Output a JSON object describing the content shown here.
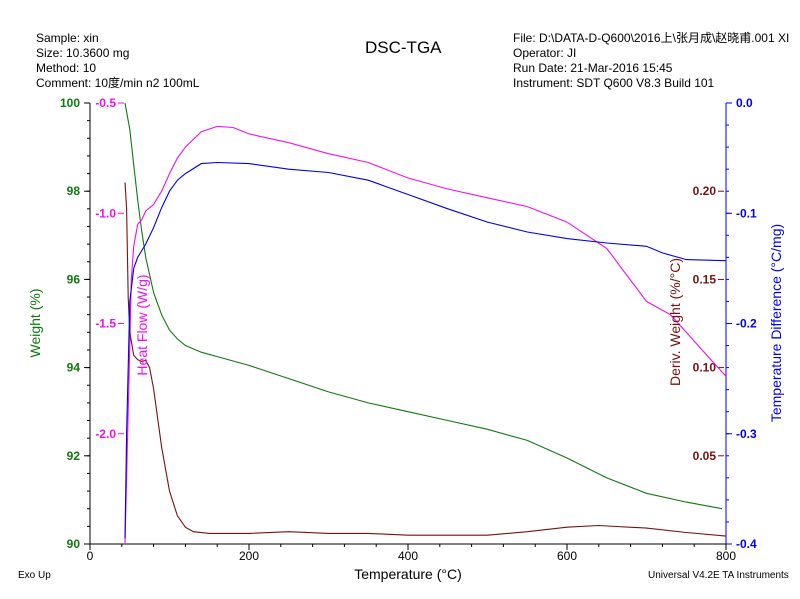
{
  "header": {
    "title": "DSC-TGA",
    "left_lines": [
      "Sample: xin",
      "Size:  10.3600 mg",
      "Method: 10",
      "Comment: 10度/min n2 100mL"
    ],
    "right_lines": [
      "File: D:\\DATA-D-Q600\\2016上\\张月成\\赵晓甫.001 XI",
      "Operator: JI",
      "Run Date: 21-Mar-2016 15:45",
      "Instrument: SDT Q600 V8.3 Build 101"
    ]
  },
  "footer": {
    "left": "Exo Up",
    "right": "Universal V4.2E TA Instruments"
  },
  "colors": {
    "weight": "#117711",
    "heat_flow": "#ee11ee",
    "deriv_weight": "#771111",
    "temp_diff": "#0000ee",
    "axis": "#000000"
  },
  "chart_data": {
    "type": "line",
    "title": "DSC-TGA",
    "x": {
      "label": "Temperature (°C)",
      "range": [
        0,
        800
      ],
      "ticks": [
        0,
        200,
        400,
        600,
        800
      ],
      "tick_labels": [
        "0",
        "200",
        "400",
        "600",
        "800"
      ]
    },
    "axes": {
      "weight": {
        "label": "Weight (%)",
        "range": [
          90,
          100
        ],
        "ticks": [
          90,
          92,
          94,
          96,
          98,
          100
        ],
        "tick_labels": [
          "90",
          "92",
          "94",
          "96",
          "98",
          "100"
        ]
      },
      "heat_flow": {
        "label": "Heat Flow (W/g)",
        "range": [
          -2.5,
          -0.5
        ],
        "ticks": [
          -0.5,
          -1.0,
          -1.5,
          -2.0
        ],
        "tick_labels": [
          "-0.5",
          "-1.0",
          "-1.5",
          "-2.0"
        ]
      },
      "deriv_weight": {
        "label": "Deriv. Weight (%/°C)",
        "range": [
          0.0,
          0.25
        ],
        "ticks": [
          0.2,
          0.15,
          0.1,
          0.05
        ],
        "tick_labels": [
          "0.20",
          "0.15",
          "0.10",
          "0.05"
        ]
      },
      "temp_diff": {
        "label": "Temperature Difference (°C/mg)",
        "range": [
          -0.4,
          0.0
        ],
        "ticks": [
          0.0,
          -0.1,
          -0.2,
          -0.3,
          -0.4
        ],
        "tick_labels": [
          "0.0",
          "-0.1",
          "-0.2",
          "-0.3",
          "-0.4"
        ]
      }
    },
    "series": [
      {
        "key": "weight",
        "axis": "weight",
        "x": [
          44,
          50,
          55,
          60,
          65,
          70,
          80,
          90,
          100,
          110,
          120,
          140,
          160,
          200,
          250,
          300,
          350,
          400,
          450,
          500,
          550,
          600,
          650,
          700,
          750,
          795
        ],
        "y": [
          100.0,
          99.4,
          98.6,
          97.8,
          97.1,
          96.5,
          95.7,
          95.2,
          94.85,
          94.65,
          94.5,
          94.35,
          94.25,
          94.05,
          93.75,
          93.45,
          93.2,
          93.0,
          92.8,
          92.6,
          92.35,
          91.95,
          91.5,
          91.15,
          90.95,
          90.8
        ]
      },
      {
        "key": "heat_flow",
        "axis": "heat_flow",
        "x": [
          44,
          46,
          48,
          50,
          52,
          55,
          60,
          65,
          70,
          80,
          90,
          100,
          110,
          120,
          140,
          160,
          180,
          200,
          250,
          300,
          350,
          400,
          450,
          500,
          550,
          600,
          650,
          700,
          730,
          750,
          770,
          790,
          800
        ],
        "y": [
          -2.5,
          -2.2,
          -1.9,
          -1.6,
          -1.3,
          -1.15,
          -1.05,
          -1.03,
          -0.99,
          -0.96,
          -0.9,
          -0.82,
          -0.75,
          -0.7,
          -0.63,
          -0.606,
          -0.611,
          -0.64,
          -0.68,
          -0.73,
          -0.77,
          -0.84,
          -0.89,
          -0.93,
          -0.97,
          -1.04,
          -1.16,
          -1.4,
          -1.46,
          -1.54,
          -1.62,
          -1.7,
          -1.74
        ]
      },
      {
        "key": "deriv_weight",
        "axis": "deriv_weight",
        "x": [
          44,
          46,
          48,
          50,
          55,
          60,
          65,
          70,
          75,
          80,
          90,
          100,
          110,
          120,
          130,
          150,
          200,
          250,
          300,
          350,
          400,
          450,
          500,
          550,
          600,
          640,
          700,
          750,
          800
        ],
        "y": [
          0.205,
          0.19,
          0.14,
          0.12,
          0.107,
          0.1045,
          0.1035,
          0.104,
          0.1,
          0.088,
          0.055,
          0.03,
          0.016,
          0.0095,
          0.007,
          0.006,
          0.006,
          0.007,
          0.006,
          0.006,
          0.005,
          0.005,
          0.005,
          0.007,
          0.0095,
          0.0105,
          0.009,
          0.0065,
          0.0045
        ]
      },
      {
        "key": "temp_diff",
        "axis": "temp_diff",
        "x": [
          44,
          46,
          50,
          55,
          60,
          70,
          80,
          90,
          100,
          110,
          120,
          140,
          160,
          200,
          250,
          300,
          350,
          400,
          450,
          500,
          550,
          600,
          650,
          700,
          720,
          750,
          800
        ],
        "y": [
          -0.395,
          -0.3,
          -0.18,
          -0.15,
          -0.14,
          -0.128,
          -0.113,
          -0.095,
          -0.08,
          -0.07,
          -0.064,
          -0.055,
          -0.054,
          -0.055,
          -0.06,
          -0.063,
          -0.07,
          -0.083,
          -0.096,
          -0.108,
          -0.117,
          -0.123,
          -0.127,
          -0.13,
          -0.136,
          -0.142,
          -0.143
        ]
      }
    ],
    "legend": "none",
    "grid": false
  }
}
